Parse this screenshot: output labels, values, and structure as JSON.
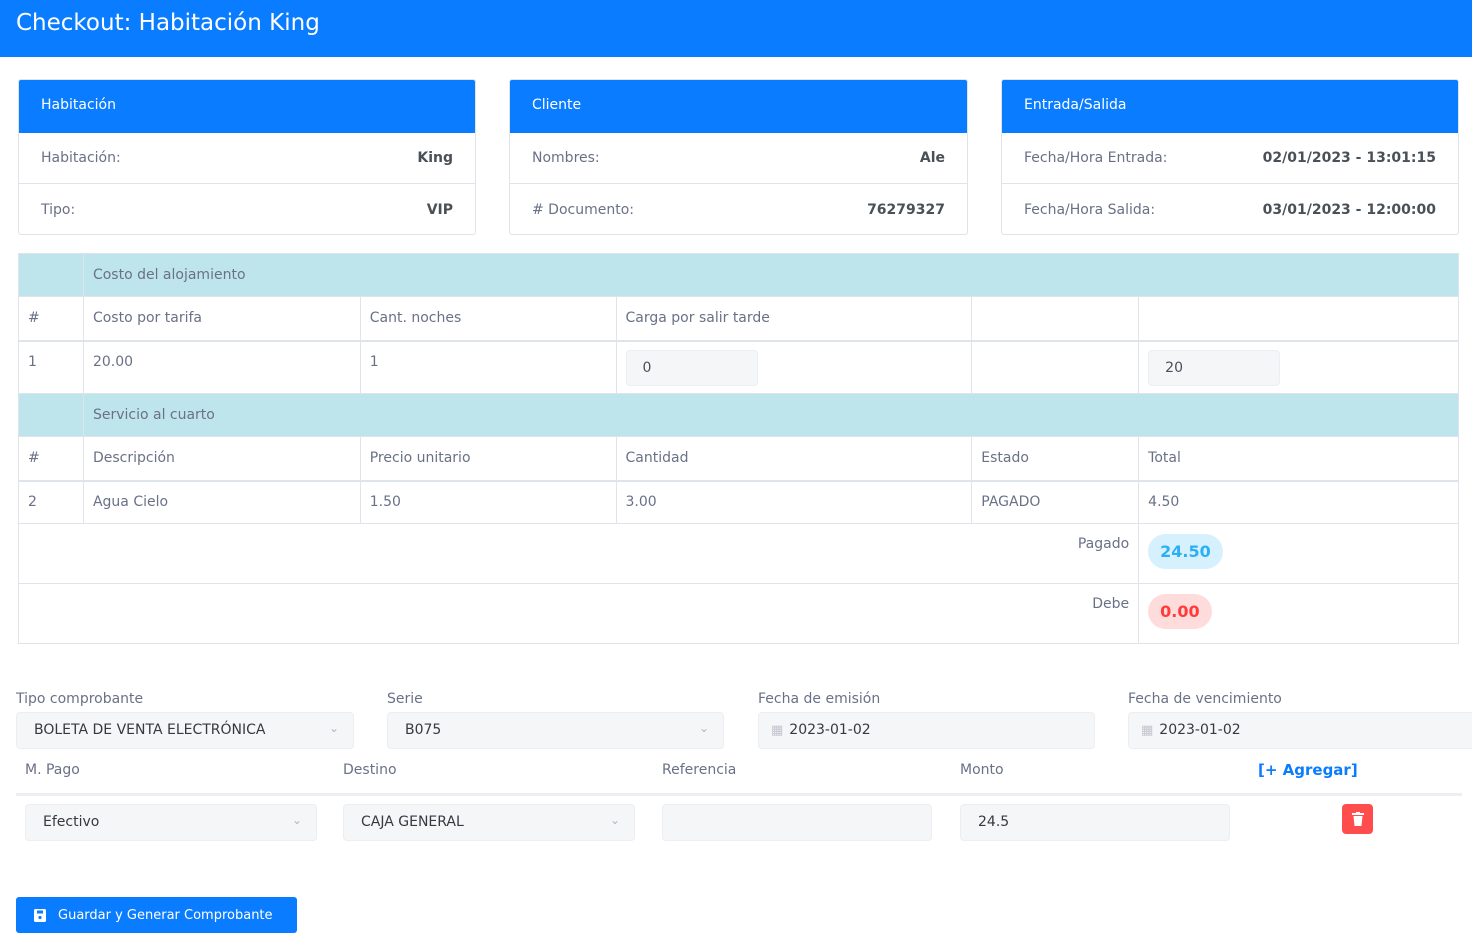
{
  "header": {
    "title": "Checkout: Habitación King"
  },
  "cards": [
    {
      "title": "Habitación",
      "rows": [
        {
          "label": "Habitación:",
          "value": "King"
        },
        {
          "label": "Tipo:",
          "value": "VIP"
        }
      ]
    },
    {
      "title": "Cliente",
      "rows": [
        {
          "label": "Nombres:",
          "value": "Ale"
        },
        {
          "label": "# Documento:",
          "value": "76279327"
        }
      ]
    },
    {
      "title": "Entrada/Salida",
      "rows": [
        {
          "label": "Fecha/Hora Entrada:",
          "value": "02/01/2023 - 13:01:15"
        },
        {
          "label": "Fecha/Hora Salida:",
          "value": "03/01/2023 - 12:00:00"
        }
      ]
    }
  ],
  "lodging": {
    "section": "Costo del alojamiento",
    "headers": [
      "#",
      "Costo por tarifa",
      "Cant. noches",
      "Carga por salir tarde"
    ],
    "row": {
      "num": "1",
      "rate": "20.00",
      "nights": "1",
      "late_charge": "0",
      "total": "20"
    }
  },
  "service": {
    "section": "Servicio al cuarto",
    "headers": [
      "#",
      "Descripción",
      "Precio unitario",
      "Cantidad",
      "Estado",
      "Total"
    ],
    "row": {
      "num": "2",
      "desc": "Agua Cielo",
      "price": "1.50",
      "qty": "3.00",
      "status": "PAGADO",
      "total": "4.50"
    }
  },
  "totals": {
    "paid_label": "Pagado",
    "paid": "24.50",
    "owed_label": "Debe",
    "owed": "0.00"
  },
  "form": {
    "tipo_label": "Tipo comprobante",
    "tipo": "BOLETA DE VENTA ELECTRÓNICA",
    "serie_label": "Serie",
    "serie": "B075",
    "emision_label": "Fecha de emisión",
    "emision": "2023-01-02",
    "venc_label": "Fecha de vencimiento",
    "venc": "2023-01-02",
    "pago_label": "M. Pago",
    "pago": "Efectivo",
    "destino_label": "Destino",
    "destino": "CAJA GENERAL",
    "ref_label": "Referencia",
    "ref": "",
    "monto_label": "Monto",
    "monto": "24.5",
    "add_label": "[+ Agregar]",
    "save_label": "Guardar y Generar Comprobante"
  },
  "colors": {
    "primary": "#0a7cff",
    "section": "#bee5eb",
    "paid": "#2ab0f5",
    "owed": "#ff3b3b",
    "delete": "#ff4d4d"
  }
}
